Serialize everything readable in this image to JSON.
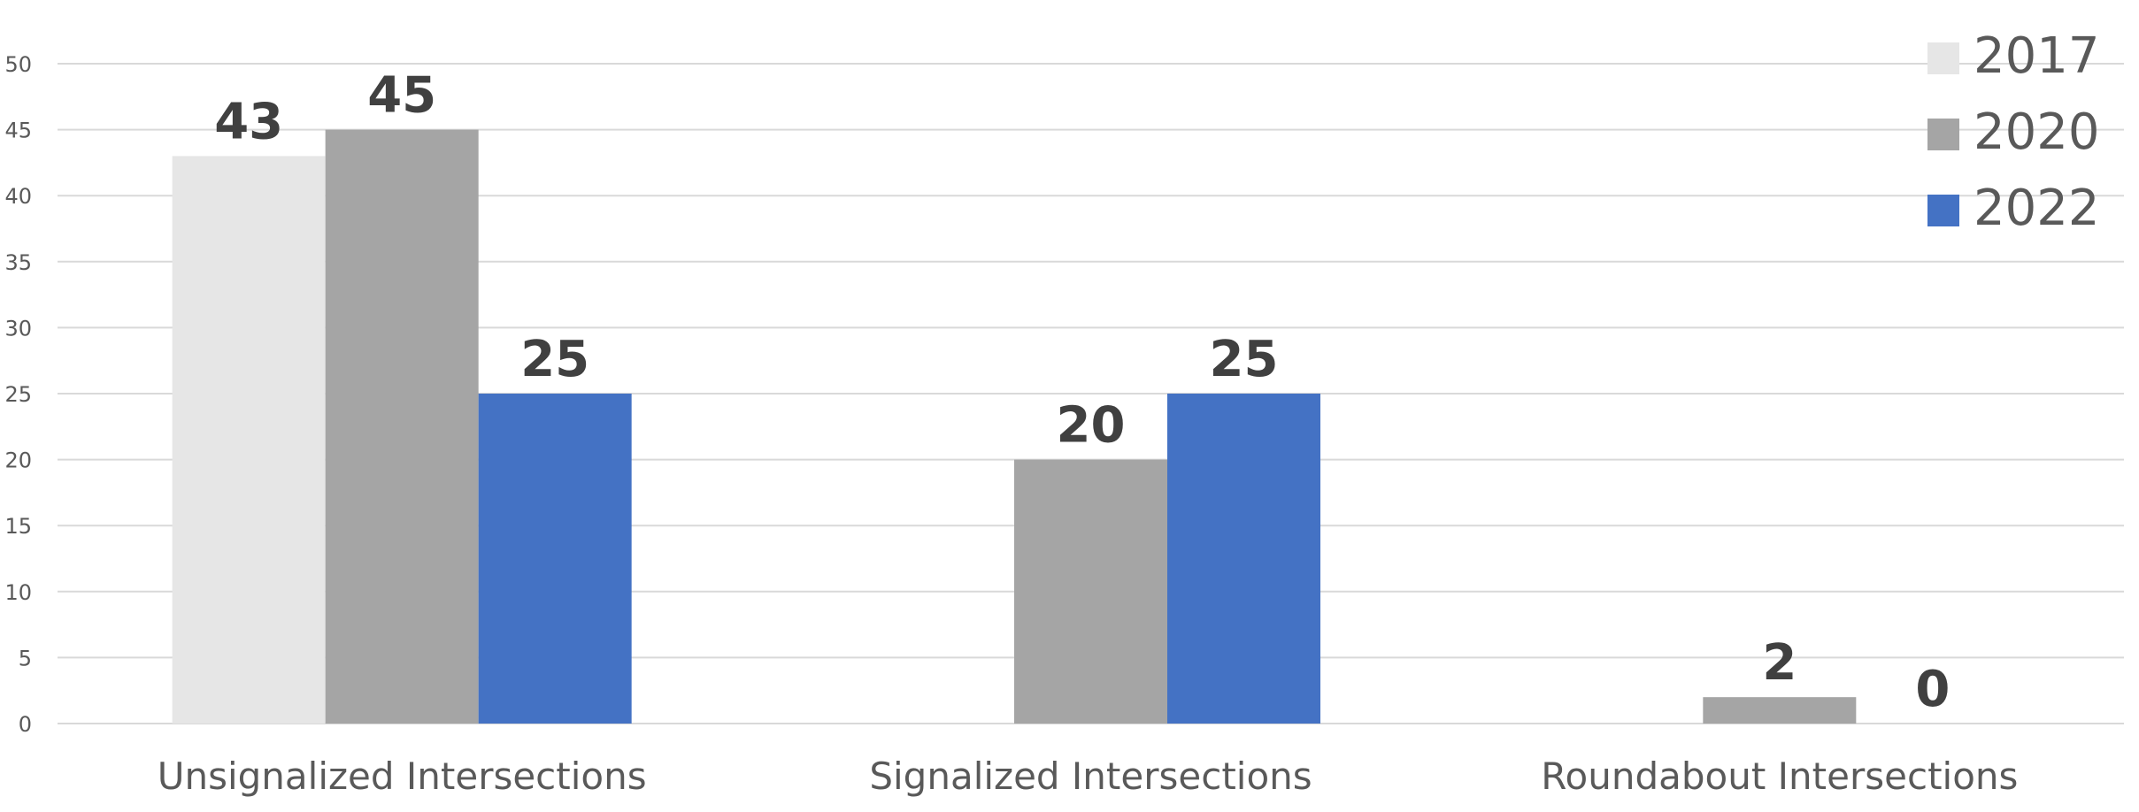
{
  "chart_data": {
    "type": "bar",
    "title": "",
    "xlabel": "",
    "ylabel": "",
    "categories": [
      "Unsignalized Intersections",
      "Signalized Intersections",
      "Roundabout Intersections"
    ],
    "series": [
      {
        "name": "2017",
        "color": "#e6e6e6",
        "values": [
          43,
          null,
          null
        ],
        "labels": [
          "43",
          "",
          ""
        ]
      },
      {
        "name": "2020",
        "color": "#a5a5a5",
        "values": [
          45,
          20,
          2
        ],
        "labels": [
          "45",
          "20",
          "2"
        ]
      },
      {
        "name": "2022",
        "color": "#4472c4",
        "values": [
          25,
          25,
          0
        ],
        "labels": [
          "25",
          "25",
          "0"
        ]
      }
    ],
    "ylim": [
      0,
      50
    ],
    "yticks": [
      "0",
      "5",
      "10",
      "15",
      "20",
      "25",
      "30",
      "35",
      "40",
      "45",
      "50"
    ],
    "grid": true,
    "legend_position": "top-right"
  }
}
